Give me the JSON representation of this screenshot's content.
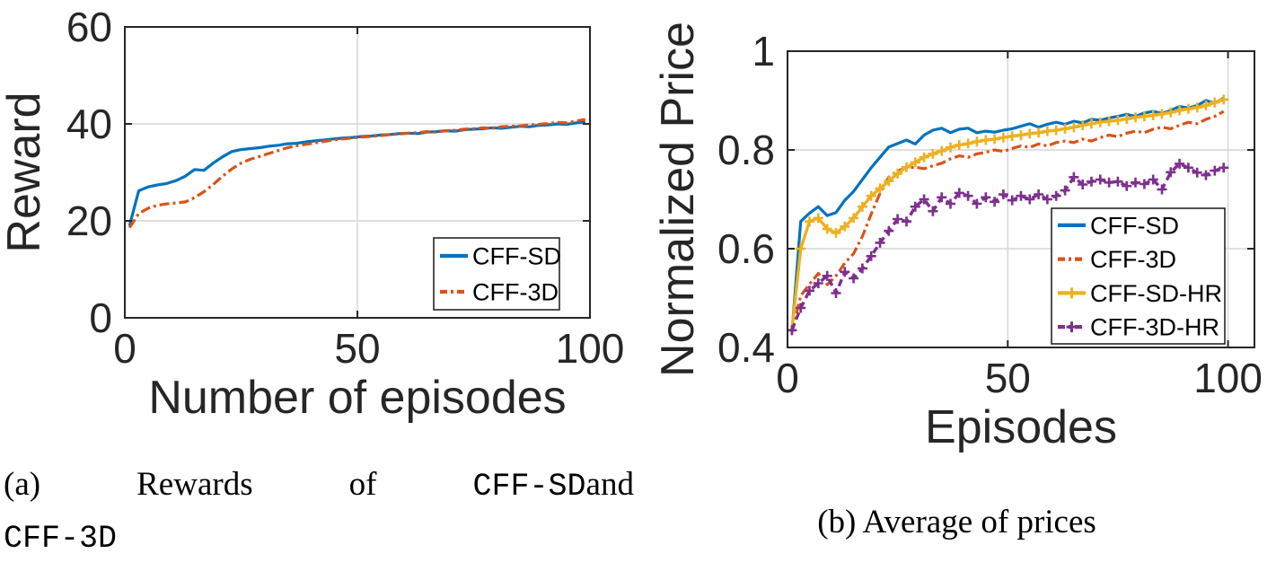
{
  "figure": {
    "captions": {
      "a": {
        "prefix": "(a)",
        "word1": "Rewards",
        "word2": "of",
        "mono1": "CFF-SD",
        "suffix": "and",
        "line2": "CFF-3D"
      },
      "b": {
        "text": "(b) Average of prices"
      }
    }
  },
  "colors": {
    "blue": "#0072BD",
    "orange": "#D95319",
    "yellow": "#EDB120",
    "purple": "#7E2F8E",
    "axis": "#262626",
    "grid": "#d6d6d6",
    "text": "#262626",
    "background": "#ffffff"
  },
  "chart_data": [
    {
      "type": "line",
      "title": "",
      "xlabel": "Number of episodes",
      "ylabel": "Reward",
      "xlim": [
        0,
        100
      ],
      "ylim": [
        0,
        60
      ],
      "xticks": [
        0,
        50,
        100
      ],
      "xtick_labels": [
        "0",
        "50",
        "100"
      ],
      "yticks": [
        0,
        20,
        40,
        60
      ],
      "ytick_labels": [
        "0",
        "20",
        "40",
        "60"
      ],
      "grid": true,
      "legend_position": "lower-right",
      "x": [
        1,
        3,
        5,
        7,
        9,
        11,
        13,
        15,
        17,
        19,
        21,
        23,
        25,
        27,
        29,
        31,
        33,
        35,
        37,
        39,
        41,
        43,
        45,
        47,
        49,
        51,
        53,
        55,
        57,
        59,
        61,
        63,
        65,
        67,
        69,
        71,
        73,
        75,
        77,
        79,
        81,
        83,
        85,
        87,
        89,
        91,
        93,
        95,
        97,
        99
      ],
      "series": [
        {
          "name": "CFF-SD",
          "color": "#0072BD",
          "style": "solid",
          "marker": "none",
          "values": [
            19.0,
            26.2,
            27.0,
            27.4,
            27.7,
            28.3,
            29.2,
            30.6,
            30.4,
            31.9,
            33.2,
            34.3,
            34.7,
            34.9,
            35.1,
            35.4,
            35.6,
            35.9,
            36.0,
            36.3,
            36.5,
            36.7,
            36.9,
            37.1,
            37.2,
            37.4,
            37.5,
            37.7,
            37.8,
            38.0,
            38.1,
            38.0,
            38.3,
            38.4,
            38.6,
            38.5,
            38.8,
            38.9,
            39.0,
            39.2,
            39.1,
            39.3,
            39.5,
            39.4,
            39.7,
            39.8,
            40.0,
            39.9,
            40.2,
            40.4
          ]
        },
        {
          "name": "CFF-3D",
          "color": "#D95319",
          "style": "dash-dot",
          "marker": "none",
          "values": [
            18.6,
            21.5,
            22.6,
            23.2,
            23.5,
            23.7,
            23.9,
            24.8,
            26.0,
            27.5,
            29.2,
            30.7,
            31.9,
            32.7,
            33.3,
            33.9,
            34.5,
            35.1,
            35.5,
            35.8,
            36.1,
            36.4,
            36.7,
            36.9,
            37.1,
            37.3,
            37.4,
            37.6,
            37.8,
            37.9,
            38.1,
            38.2,
            38.4,
            38.3,
            38.6,
            38.7,
            38.9,
            39.0,
            39.2,
            39.1,
            39.4,
            39.5,
            39.6,
            39.8,
            39.9,
            40.1,
            40.3,
            40.2,
            40.6,
            40.9
          ]
        }
      ]
    },
    {
      "type": "line",
      "title": "",
      "xlabel": "Episodes",
      "ylabel": "Normalized Price",
      "xlim": [
        0,
        106
      ],
      "ylim": [
        0.4,
        1.0
      ],
      "xticks": [
        0,
        50,
        100
      ],
      "xtick_labels": [
        "0",
        "50",
        "100"
      ],
      "yticks": [
        0.4,
        0.6,
        0.8,
        1.0
      ],
      "ytick_labels": [
        "0.4",
        "0.6",
        "0.8",
        "1"
      ],
      "grid": true,
      "legend_position": "lower-right",
      "x": [
        1,
        3,
        5,
        7,
        9,
        11,
        13,
        15,
        17,
        19,
        21,
        23,
        25,
        27,
        29,
        31,
        33,
        35,
        37,
        39,
        41,
        43,
        45,
        47,
        49,
        51,
        53,
        55,
        57,
        59,
        61,
        63,
        65,
        67,
        69,
        71,
        73,
        75,
        77,
        79,
        81,
        83,
        85,
        87,
        89,
        91,
        93,
        95,
        97,
        99
      ],
      "series": [
        {
          "name": "CFF-SD",
          "color": "#0072BD",
          "style": "solid",
          "marker": "none",
          "values": [
            0.43,
            0.655,
            0.672,
            0.685,
            0.667,
            0.673,
            0.698,
            0.716,
            0.74,
            0.764,
            0.785,
            0.806,
            0.813,
            0.82,
            0.812,
            0.83,
            0.84,
            0.844,
            0.835,
            0.842,
            0.844,
            0.835,
            0.838,
            0.836,
            0.84,
            0.843,
            0.848,
            0.853,
            0.846,
            0.852,
            0.856,
            0.852,
            0.858,
            0.855,
            0.862,
            0.86,
            0.865,
            0.868,
            0.872,
            0.868,
            0.875,
            0.878,
            0.874,
            0.88,
            0.888,
            0.885,
            0.89,
            0.9,
            0.895,
            0.905
          ]
        },
        {
          "name": "CFF-3D",
          "color": "#D95319",
          "style": "dash-dot",
          "marker": "none",
          "values": [
            0.43,
            0.505,
            0.528,
            0.55,
            0.527,
            0.545,
            0.571,
            0.59,
            0.625,
            0.67,
            0.712,
            0.745,
            0.758,
            0.763,
            0.765,
            0.762,
            0.768,
            0.773,
            0.782,
            0.788,
            0.785,
            0.792,
            0.795,
            0.8,
            0.797,
            0.803,
            0.808,
            0.805,
            0.812,
            0.808,
            0.815,
            0.818,
            0.815,
            0.822,
            0.818,
            0.825,
            0.83,
            0.827,
            0.834,
            0.838,
            0.835,
            0.842,
            0.846,
            0.843,
            0.85,
            0.856,
            0.853,
            0.862,
            0.868,
            0.878
          ]
        },
        {
          "name": "CFF-SD-HR",
          "color": "#EDB120",
          "style": "solid",
          "marker": "plus",
          "values": [
            0.435,
            0.6,
            0.655,
            0.662,
            0.64,
            0.632,
            0.645,
            0.662,
            0.685,
            0.707,
            0.722,
            0.737,
            0.752,
            0.765,
            0.775,
            0.785,
            0.792,
            0.798,
            0.805,
            0.81,
            0.813,
            0.817,
            0.82,
            0.822,
            0.825,
            0.828,
            0.83,
            0.833,
            0.835,
            0.838,
            0.84,
            0.843,
            0.846,
            0.85,
            0.853,
            0.856,
            0.858,
            0.86,
            0.863,
            0.866,
            0.868,
            0.87,
            0.873,
            0.876,
            0.88,
            0.883,
            0.886,
            0.89,
            0.896,
            0.902
          ]
        },
        {
          "name": "CFF-3D-HR",
          "color": "#7E2F8E",
          "style": "dash",
          "marker": "plus",
          "values": [
            0.435,
            0.48,
            0.515,
            0.53,
            0.545,
            0.51,
            0.553,
            0.54,
            0.56,
            0.585,
            0.612,
            0.636,
            0.66,
            0.655,
            0.685,
            0.7,
            0.676,
            0.704,
            0.691,
            0.713,
            0.707,
            0.691,
            0.704,
            0.695,
            0.71,
            0.698,
            0.707,
            0.7,
            0.71,
            0.7,
            0.707,
            0.718,
            0.745,
            0.73,
            0.736,
            0.74,
            0.734,
            0.736,
            0.727,
            0.734,
            0.731,
            0.74,
            0.72,
            0.755,
            0.772,
            0.764,
            0.754,
            0.749,
            0.758,
            0.764
          ]
        }
      ]
    }
  ]
}
